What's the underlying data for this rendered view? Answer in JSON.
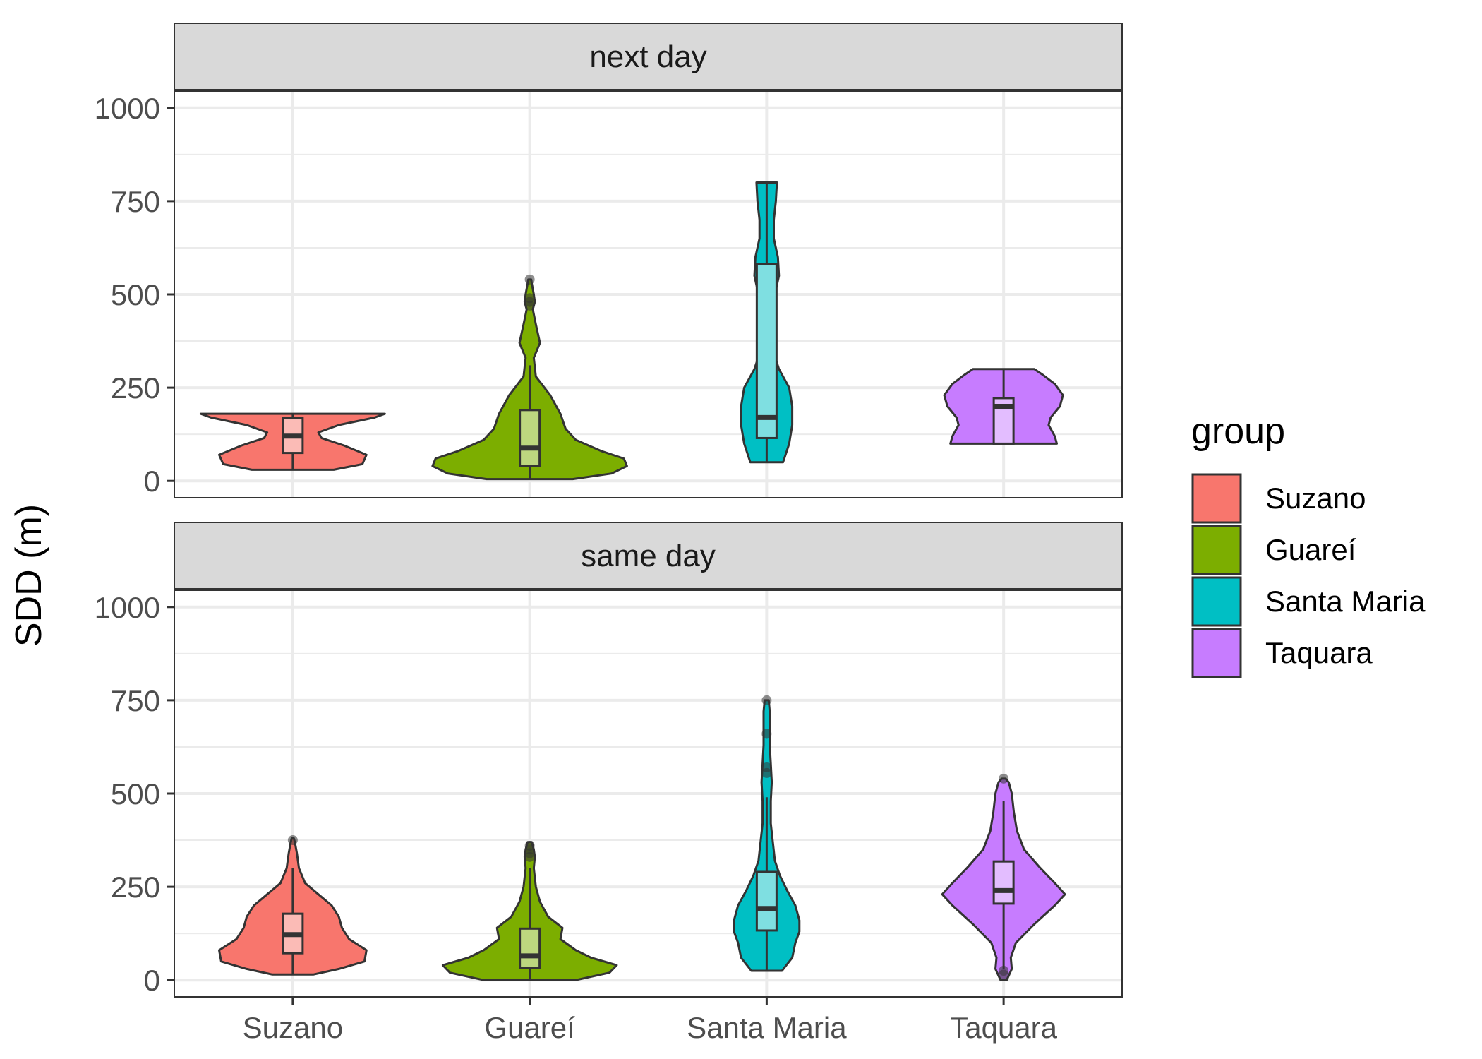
{
  "chart_data": {
    "type": "violin",
    "ylabel": "SDD (m)",
    "xlabel": "",
    "categories": [
      "Suzano",
      "Guareí",
      "Santa Maria",
      "Taquara"
    ],
    "ylim": [
      -45,
      1045
    ],
    "y_ticks": [
      0,
      250,
      500,
      750,
      1000
    ],
    "y_tick_labels": [
      "0",
      "250",
      "500",
      "750",
      "1000"
    ],
    "grid": true,
    "legend": {
      "title": "group",
      "position": "right",
      "entries": [
        "Suzano",
        "Guareí",
        "Santa Maria",
        "Taquara"
      ]
    },
    "colors": {
      "Suzano": "#F8766D",
      "Guareí": "#7CAE00",
      "Santa Maria": "#00BFC4",
      "Taquara": "#C77CFF"
    },
    "box_fill": {
      "Suzano": "#FBBBB6",
      "Guareí": "#BDD77F",
      "Santa Maria": "#7FDFE1",
      "Taquara": "#E3BDFF"
    },
    "panels": [
      {
        "label": "next day",
        "groups": [
          {
            "name": "Suzano",
            "violin": [
              [
                30,
                0.4
              ],
              [
                45,
                0.68
              ],
              [
                70,
                0.72
              ],
              [
                95,
                0.5
              ],
              [
                115,
                0.28
              ],
              [
                130,
                0.25
              ],
              [
                150,
                0.45
              ],
              [
                170,
                0.8
              ],
              [
                180,
                0.9
              ]
            ],
            "box": {
              "q1": 75,
              "median": 120,
              "q3": 168,
              "lower": 30,
              "upper": 180
            },
            "outliers": []
          },
          {
            "name": "Guareí",
            "violin": [
              [
                5,
                0.42
              ],
              [
                20,
                0.8
              ],
              [
                40,
                0.95
              ],
              [
                60,
                0.92
              ],
              [
                80,
                0.7
              ],
              [
                110,
                0.45
              ],
              [
                140,
                0.35
              ],
              [
                180,
                0.3
              ],
              [
                230,
                0.2
              ],
              [
                280,
                0.06
              ],
              [
                330,
                0.04
              ],
              [
                370,
                0.1
              ],
              [
                420,
                0.06
              ],
              [
                460,
                0.03
              ],
              [
                480,
                0.05
              ],
              [
                500,
                0.04
              ],
              [
                530,
                0.02
              ],
              [
                540,
                0.015
              ]
            ],
            "box": {
              "q1": 40,
              "median": 88,
              "q3": 190,
              "lower": 5,
              "upper": 310
            },
            "outliers": [
              470,
              480,
              490,
              540
            ]
          },
          {
            "name": "Santa Maria",
            "violin": [
              [
                50,
                0.16
              ],
              [
                100,
                0.22
              ],
              [
                150,
                0.25
              ],
              [
                200,
                0.25
              ],
              [
                250,
                0.22
              ],
              [
                300,
                0.12
              ],
              [
                350,
                0.06
              ],
              [
                400,
                0.04
              ],
              [
                450,
                0.05
              ],
              [
                500,
                0.08
              ],
              [
                550,
                0.12
              ],
              [
                600,
                0.11
              ],
              [
                650,
                0.07
              ],
              [
                700,
                0.07
              ],
              [
                750,
                0.09
              ],
              [
                800,
                0.1
              ]
            ],
            "box": {
              "q1": 115,
              "median": 170,
              "q3": 582,
              "lower": 50,
              "upper": 800
            },
            "outliers": []
          },
          {
            "name": "Taquara",
            "violin": [
              [
                100,
                0.52
              ],
              [
                120,
                0.5
              ],
              [
                150,
                0.44
              ],
              [
                170,
                0.46
              ],
              [
                200,
                0.55
              ],
              [
                230,
                0.58
              ],
              [
                260,
                0.5
              ],
              [
                285,
                0.38
              ],
              [
                300,
                0.3
              ]
            ],
            "box": {
              "q1": 100,
              "median": 200,
              "q3": 222,
              "lower": 100,
              "upper": 300
            },
            "outliers": []
          }
        ]
      },
      {
        "label": "same day",
        "groups": [
          {
            "name": "Suzano",
            "violin": [
              [
                15,
                0.2
              ],
              [
                30,
                0.45
              ],
              [
                50,
                0.7
              ],
              [
                80,
                0.72
              ],
              [
                110,
                0.55
              ],
              [
                140,
                0.48
              ],
              [
                170,
                0.45
              ],
              [
                200,
                0.38
              ],
              [
                230,
                0.25
              ],
              [
                260,
                0.12
              ],
              [
                300,
                0.06
              ],
              [
                340,
                0.04
              ],
              [
                370,
                0.02
              ],
              [
                380,
                0.01
              ]
            ],
            "box": {
              "q1": 72,
              "median": 122,
              "q3": 178,
              "lower": 15,
              "upper": 300
            },
            "outliers": [
              375
            ]
          },
          {
            "name": "Guareí",
            "violin": [
              [
                0,
                0.45
              ],
              [
                20,
                0.78
              ],
              [
                40,
                0.85
              ],
              [
                60,
                0.6
              ],
              [
                80,
                0.45
              ],
              [
                110,
                0.3
              ],
              [
                140,
                0.32
              ],
              [
                170,
                0.18
              ],
              [
                210,
                0.1
              ],
              [
                250,
                0.06
              ],
              [
                300,
                0.04
              ],
              [
                330,
                0.05
              ],
              [
                350,
                0.04
              ],
              [
                370,
                0.02
              ]
            ],
            "box": {
              "q1": 32,
              "median": 65,
              "q3": 138,
              "lower": 0,
              "upper": 300
            },
            "outliers": [
              330,
              340,
              350,
              360
            ]
          },
          {
            "name": "Santa Maria",
            "violin": [
              [
                25,
                0.15
              ],
              [
                60,
                0.25
              ],
              [
                100,
                0.28
              ],
              [
                130,
                0.32
              ],
              [
                160,
                0.32
              ],
              [
                200,
                0.28
              ],
              [
                240,
                0.2
              ],
              [
                280,
                0.13
              ],
              [
                320,
                0.08
              ],
              [
                370,
                0.06
              ],
              [
                420,
                0.04
              ],
              [
                480,
                0.04
              ],
              [
                530,
                0.05
              ],
              [
                580,
                0.04
              ],
              [
                630,
                0.03
              ],
              [
                680,
                0.03
              ],
              [
                720,
                0.03
              ],
              [
                750,
                0.02
              ]
            ],
            "box": {
              "q1": 133,
              "median": 192,
              "q3": 290,
              "lower": 25,
              "upper": 490
            },
            "outliers": [
              555,
              570,
              660,
              750
            ]
          },
          {
            "name": "Taquara",
            "violin": [
              [
                0,
                0.03
              ],
              [
                30,
                0.08
              ],
              [
                60,
                0.07
              ],
              [
                100,
                0.12
              ],
              [
                150,
                0.3
              ],
              [
                200,
                0.5
              ],
              [
                230,
                0.6
              ],
              [
                260,
                0.5
              ],
              [
                300,
                0.36
              ],
              [
                350,
                0.2
              ],
              [
                400,
                0.13
              ],
              [
                450,
                0.1
              ],
              [
                500,
                0.08
              ],
              [
                530,
                0.05
              ],
              [
                540,
                0.02
              ]
            ],
            "box": {
              "q1": 205,
              "median": 240,
              "q3": 318,
              "lower": 30,
              "upper": 480
            },
            "outliers": [
              540,
              25,
              15
            ]
          }
        ]
      }
    ]
  }
}
